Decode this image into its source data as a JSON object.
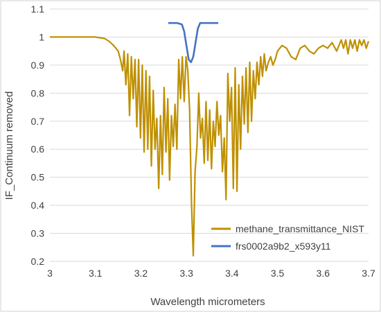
{
  "chart_data": {
    "type": "line",
    "title": "",
    "xlabel": "Wavelength micrometers",
    "ylabel": "IF_Continuum removed",
    "xlim": [
      3,
      3.7
    ],
    "ylim": [
      0.2,
      1.1
    ],
    "x_ticks": [
      "3",
      "3.1",
      "3.2",
      "3.3",
      "3.4",
      "3.5",
      "3.6",
      "3.7"
    ],
    "y_ticks": [
      "0.2",
      "0.3",
      "0.4",
      "0.5",
      "0.6",
      "0.7",
      "0.8",
      "0.9",
      "1",
      "1.1"
    ],
    "x_ticks_values": [
      3,
      3.1,
      3.2,
      3.3,
      3.4,
      3.5,
      3.6,
      3.7
    ],
    "y_ticks_values": [
      0.2,
      0.3,
      0.4,
      0.5,
      0.6,
      0.7,
      0.8,
      0.9,
      1.0,
      1.1
    ],
    "grid": "horizontal",
    "legend_position": "bottom-right",
    "series": [
      {
        "name": "methane_transmittance_NIST",
        "color": "#bf9000",
        "points": [
          [
            3.0,
            1.0
          ],
          [
            3.05,
            1.0
          ],
          [
            3.1,
            1.0
          ],
          [
            3.12,
            0.995
          ],
          [
            3.13,
            0.985
          ],
          [
            3.14,
            0.97
          ],
          [
            3.15,
            0.95
          ],
          [
            3.155,
            0.92
          ],
          [
            3.16,
            0.88
          ],
          [
            3.163,
            0.95
          ],
          [
            3.167,
            0.83
          ],
          [
            3.171,
            0.94
          ],
          [
            3.175,
            0.72
          ],
          [
            3.179,
            0.93
          ],
          [
            3.183,
            0.78
          ],
          [
            3.187,
            0.92
          ],
          [
            3.191,
            0.68
          ],
          [
            3.195,
            0.92
          ],
          [
            3.199,
            0.64
          ],
          [
            3.203,
            0.9
          ],
          [
            3.207,
            0.59
          ],
          [
            3.211,
            0.88
          ],
          [
            3.215,
            0.6
          ],
          [
            3.219,
            0.86
          ],
          [
            3.223,
            0.54
          ],
          [
            3.227,
            0.81
          ],
          [
            3.231,
            0.6
          ],
          [
            3.235,
            0.71
          ],
          [
            3.239,
            0.46
          ],
          [
            3.243,
            0.72
          ],
          [
            3.247,
            0.51
          ],
          [
            3.251,
            0.82
          ],
          [
            3.255,
            0.59
          ],
          [
            3.259,
            0.78
          ],
          [
            3.263,
            0.49
          ],
          [
            3.267,
            0.72
          ],
          [
            3.271,
            0.61
          ],
          [
            3.275,
            0.76
          ],
          [
            3.279,
            0.6
          ],
          [
            3.283,
            0.92
          ],
          [
            3.287,
            0.78
          ],
          [
            3.291,
            0.93
          ],
          [
            3.295,
            0.77
          ],
          [
            3.299,
            0.93
          ],
          [
            3.303,
            0.88
          ],
          [
            3.307,
            0.74
          ],
          [
            3.311,
            0.41
          ],
          [
            3.315,
            0.22
          ],
          [
            3.319,
            0.52
          ],
          [
            3.323,
            0.61
          ],
          [
            3.327,
            0.8
          ],
          [
            3.331,
            0.64
          ],
          [
            3.335,
            0.71
          ],
          [
            3.339,
            0.55
          ],
          [
            3.343,
            0.77
          ],
          [
            3.347,
            0.56
          ],
          [
            3.351,
            0.74
          ],
          [
            3.355,
            0.53
          ],
          [
            3.359,
            0.7
          ],
          [
            3.363,
            0.61
          ],
          [
            3.367,
            0.77
          ],
          [
            3.371,
            0.65
          ],
          [
            3.375,
            0.72
          ],
          [
            3.379,
            0.52
          ],
          [
            3.383,
            0.64
          ],
          [
            3.387,
            0.42
          ],
          [
            3.391,
            0.87
          ],
          [
            3.395,
            0.7
          ],
          [
            3.399,
            0.82
          ],
          [
            3.403,
            0.46
          ],
          [
            3.407,
            0.89
          ],
          [
            3.411,
            0.45
          ],
          [
            3.415,
            0.83
          ],
          [
            3.419,
            0.6
          ],
          [
            3.423,
            0.86
          ],
          [
            3.427,
            0.69
          ],
          [
            3.431,
            0.89
          ],
          [
            3.435,
            0.66
          ],
          [
            3.439,
            0.91
          ],
          [
            3.443,
            0.7
          ],
          [
            3.447,
            0.88
          ],
          [
            3.451,
            0.78
          ],
          [
            3.455,
            0.91
          ],
          [
            3.459,
            0.83
          ],
          [
            3.463,
            0.93
          ],
          [
            3.467,
            0.86
          ],
          [
            3.471,
            0.94
          ],
          [
            3.475,
            0.88
          ],
          [
            3.48,
            0.91
          ],
          [
            3.485,
            0.93
          ],
          [
            3.49,
            0.9
          ],
          [
            3.495,
            0.92
          ],
          [
            3.5,
            0.95
          ],
          [
            3.51,
            0.97
          ],
          [
            3.52,
            0.96
          ],
          [
            3.53,
            0.93
          ],
          [
            3.54,
            0.92
          ],
          [
            3.55,
            0.96
          ],
          [
            3.56,
            0.97
          ],
          [
            3.57,
            0.95
          ],
          [
            3.58,
            0.94
          ],
          [
            3.59,
            0.96
          ],
          [
            3.6,
            0.97
          ],
          [
            3.61,
            0.96
          ],
          [
            3.62,
            0.98
          ],
          [
            3.63,
            0.95
          ],
          [
            3.64,
            0.99
          ],
          [
            3.645,
            0.96
          ],
          [
            3.65,
            0.99
          ],
          [
            3.655,
            0.94
          ],
          [
            3.66,
            0.99
          ],
          [
            3.665,
            0.96
          ],
          [
            3.67,
            0.99
          ],
          [
            3.675,
            0.95
          ],
          [
            3.68,
            0.99
          ],
          [
            3.685,
            0.97
          ],
          [
            3.69,
            0.99
          ],
          [
            3.695,
            0.96
          ],
          [
            3.7,
            0.985
          ]
        ]
      },
      {
        "name": "frs0002a9b2_x593y11",
        "color": "#4472c4",
        "points": [
          [
            3.26,
            1.05
          ],
          [
            3.28,
            1.05
          ],
          [
            3.29,
            1.045
          ],
          [
            3.295,
            1.02
          ],
          [
            3.3,
            0.97
          ],
          [
            3.305,
            0.92
          ],
          [
            3.31,
            0.91
          ],
          [
            3.315,
            0.93
          ],
          [
            3.32,
            0.98
          ],
          [
            3.325,
            1.03
          ],
          [
            3.33,
            1.05
          ],
          [
            3.35,
            1.05
          ],
          [
            3.37,
            1.05
          ]
        ]
      }
    ]
  }
}
